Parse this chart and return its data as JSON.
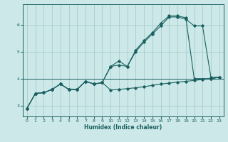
{
  "xlabel": "Humidex (Indice chaleur)",
  "bg_color": "#cce8e8",
  "grid_color": "#aacccc",
  "line_color": "#1a6060",
  "xlim": [
    -0.5,
    23.5
  ],
  "ylim": [
    2.6,
    6.75
  ],
  "xticks": [
    0,
    1,
    2,
    3,
    4,
    5,
    6,
    7,
    8,
    9,
    10,
    11,
    12,
    13,
    14,
    15,
    16,
    17,
    18,
    19,
    20,
    21,
    22,
    23
  ],
  "yticks": [
    3,
    4,
    5,
    6
  ],
  "line1_x": [
    0,
    1,
    2,
    3,
    4,
    5,
    6,
    7,
    8,
    9,
    10,
    11,
    12,
    13,
    14,
    15,
    16,
    17,
    18,
    19,
    20,
    22,
    23
  ],
  "line1_y": [
    2.9,
    3.45,
    3.48,
    3.6,
    3.8,
    3.6,
    3.6,
    3.9,
    3.8,
    3.85,
    4.45,
    4.65,
    4.45,
    5.05,
    5.4,
    5.7,
    6.05,
    6.32,
    6.32,
    6.25,
    4.0,
    4.0,
    4.05
  ],
  "line2_x": [
    0,
    1,
    2,
    3,
    4,
    5,
    6,
    7,
    8,
    9,
    10,
    11,
    12,
    13,
    14,
    15,
    16,
    17,
    18,
    19,
    20,
    21,
    22,
    23
  ],
  "line2_y": [
    2.9,
    3.45,
    3.48,
    3.6,
    3.8,
    3.6,
    3.6,
    3.9,
    3.8,
    3.85,
    4.45,
    4.5,
    4.45,
    5.0,
    5.35,
    5.65,
    5.95,
    6.28,
    6.28,
    6.2,
    5.95,
    5.95,
    4.05,
    4.05
  ],
  "line3_x": [
    0,
    1,
    2,
    3,
    4,
    5,
    6,
    7,
    8,
    9,
    10,
    11,
    12,
    13,
    14,
    15,
    16,
    17,
    18,
    19,
    20,
    21,
    22,
    23
  ],
  "line3_y": [
    2.9,
    3.45,
    3.48,
    3.6,
    3.8,
    3.6,
    3.6,
    3.9,
    3.8,
    3.85,
    3.58,
    3.6,
    3.63,
    3.66,
    3.7,
    3.75,
    3.8,
    3.83,
    3.87,
    3.9,
    3.93,
    3.97,
    3.99,
    4.05
  ],
  "hline_y": 4.0
}
